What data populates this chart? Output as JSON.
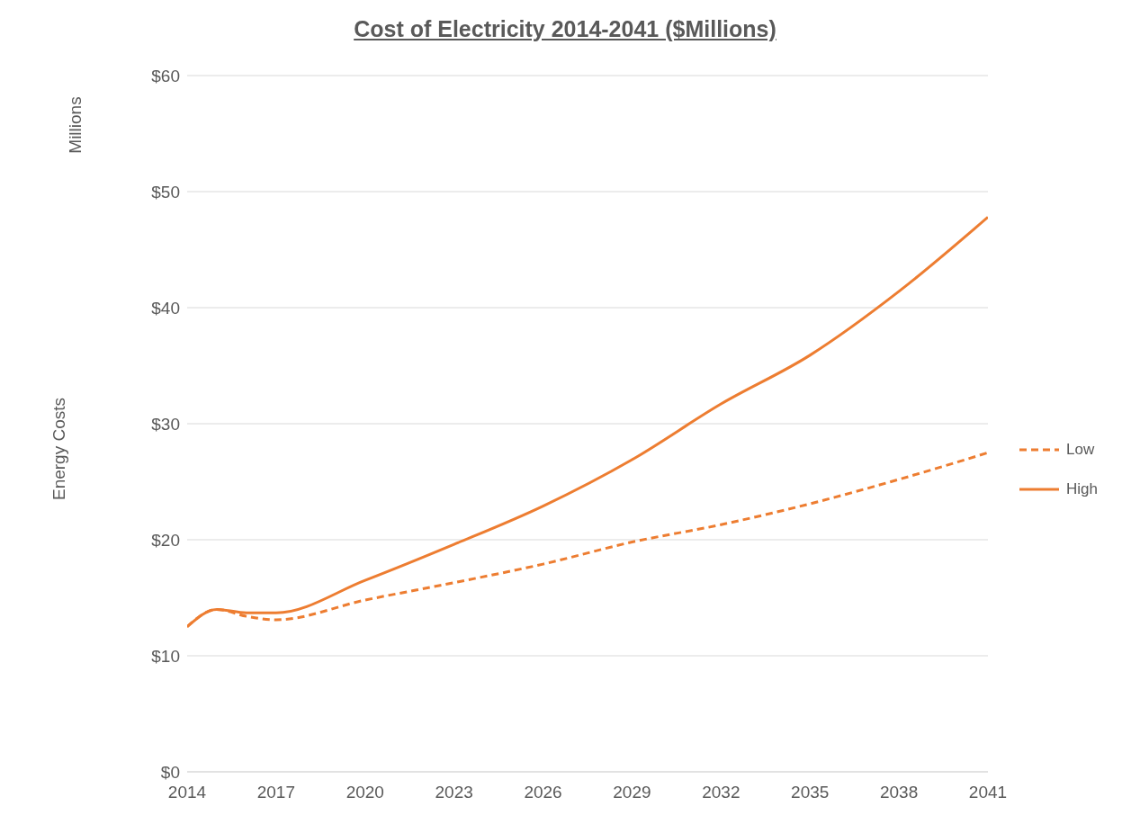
{
  "chart_data": {
    "type": "line",
    "title": "Cost of Electricity 2014-2041 ($Millions)",
    "ylabel": "Energy Costs",
    "annotations": [
      "Millions"
    ],
    "x": [
      2014,
      2015,
      2016,
      2017,
      2020,
      2023,
      2026,
      2029,
      2032,
      2035,
      2038,
      2041
    ],
    "series": [
      {
        "name": "Low",
        "color": "#ed7d31",
        "line_style": "dashed",
        "values": [
          12.5,
          14.0,
          13.4,
          13.1,
          14.8,
          16.3,
          17.9,
          19.8,
          21.3,
          23.1,
          25.2,
          27.5
        ]
      },
      {
        "name": "High",
        "color": "#ed7d31",
        "line_style": "solid",
        "values": [
          12.5,
          14.0,
          13.7,
          13.7,
          16.5,
          19.6,
          22.9,
          26.9,
          31.7,
          35.9,
          41.4,
          47.8
        ]
      }
    ],
    "xlim": [
      2014,
      2041
    ],
    "xticks": [
      2014,
      2017,
      2020,
      2023,
      2026,
      2029,
      2032,
      2035,
      2038,
      2041
    ],
    "ylim": [
      0,
      60
    ],
    "yticks": [
      {
        "value": 0,
        "label": "$0"
      },
      {
        "value": 10,
        "label": "$10"
      },
      {
        "value": 20,
        "label": "$20"
      },
      {
        "value": 30,
        "label": "$30"
      },
      {
        "value": 40,
        "label": "$40"
      },
      {
        "value": 50,
        "label": "$50"
      },
      {
        "value": 60,
        "label": "$60"
      }
    ],
    "grid": "y",
    "legend": "right",
    "marker": "none"
  }
}
